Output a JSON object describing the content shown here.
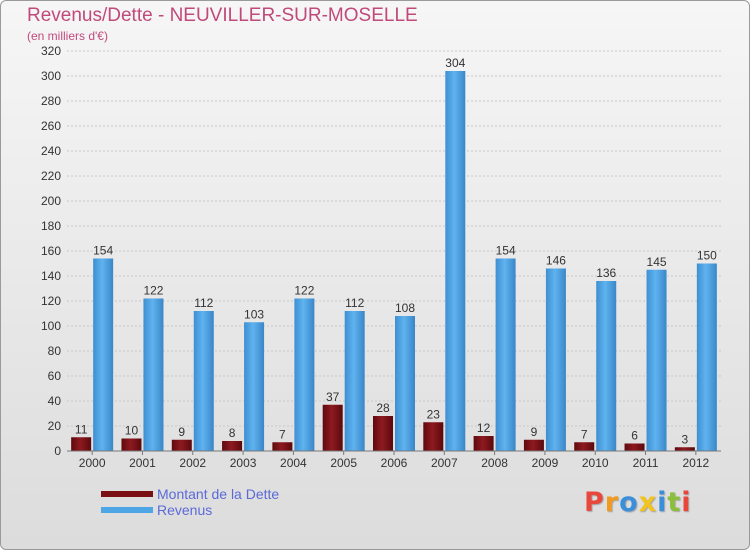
{
  "header": {
    "title": "Revenus/Dette - NEUVILLER-SUR-MOSELLE",
    "subtitle": "(en milliers d'€)"
  },
  "legend": {
    "items": [
      {
        "label": "Montant de la Dette",
        "color": "#7a0f14"
      },
      {
        "label": "Revenus",
        "color": "#4ea6e6"
      }
    ]
  },
  "logo": {
    "text": "Proxiti",
    "colors": [
      "#e8483c",
      "#f29a1e",
      "#3a8fd8",
      "#f2c21e",
      "#3a8fd8",
      "#8bbf3a",
      "#e8483c"
    ]
  },
  "chart_data": {
    "type": "bar",
    "categories": [
      "2000",
      "2001",
      "2002",
      "2003",
      "2004",
      "2005",
      "2006",
      "2007",
      "2008",
      "2009",
      "2010",
      "2011",
      "2012"
    ],
    "series": [
      {
        "name": "Montant de la Dette",
        "values": [
          11,
          10,
          9,
          8,
          7,
          37,
          28,
          23,
          12,
          9,
          7,
          6,
          3
        ],
        "color": "#7a0f14"
      },
      {
        "name": "Revenus",
        "values": [
          154,
          122,
          112,
          103,
          122,
          112,
          108,
          304,
          154,
          146,
          136,
          145,
          150
        ],
        "color": "#4ea6e6"
      }
    ],
    "title": "Revenus/Dette - NEUVILLER-SUR-MOSELLE",
    "ylabel": "(en milliers d'€)",
    "ylim": [
      0,
      320
    ],
    "ytick_step": 20,
    "grid": true,
    "legend": "bottom-left"
  }
}
